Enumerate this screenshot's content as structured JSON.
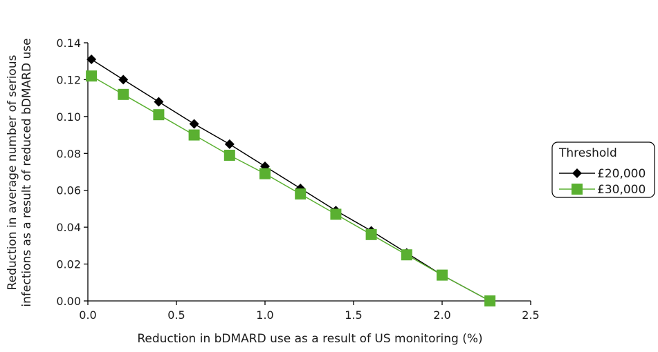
{
  "chart_data": {
    "type": "line",
    "xlabel": "Reduction in bDMARD use as a result of US monitoring (%)",
    "ylabel_lines": [
      "Reduction in average number of serious",
      "infections as a result of reduced bDMARD use"
    ],
    "xlim": [
      0,
      2.5
    ],
    "ylim": [
      0,
      0.14
    ],
    "x_ticks": [
      "0.0",
      "0.5",
      "1.0",
      "1.5",
      "2.0",
      "2.5"
    ],
    "y_ticks": [
      "0.00",
      "0.02",
      "0.04",
      "0.06",
      "0.08",
      "0.10",
      "0.12",
      "0.14"
    ],
    "grid": false,
    "legend": {
      "title": "Threshold",
      "placement": "right"
    },
    "series": [
      {
        "name": "£20,000",
        "marker": "diamond",
        "color": "#000000",
        "x": [
          0.02,
          0.2,
          0.4,
          0.6,
          0.8,
          1.0,
          1.2,
          1.4,
          1.6,
          1.8,
          2.0,
          2.27
        ],
        "y": [
          0.131,
          0.12,
          0.108,
          0.096,
          0.085,
          0.073,
          0.061,
          0.049,
          0.038,
          0.026,
          0.014,
          0.0
        ]
      },
      {
        "name": "£30,000",
        "marker": "square",
        "color": "#5ab031",
        "x": [
          0.02,
          0.2,
          0.4,
          0.6,
          0.8,
          1.0,
          1.2,
          1.4,
          1.6,
          1.8,
          2.0,
          2.27
        ],
        "y": [
          0.122,
          0.112,
          0.101,
          0.09,
          0.079,
          0.069,
          0.058,
          0.047,
          0.036,
          0.025,
          0.014,
          0.0
        ]
      }
    ]
  }
}
